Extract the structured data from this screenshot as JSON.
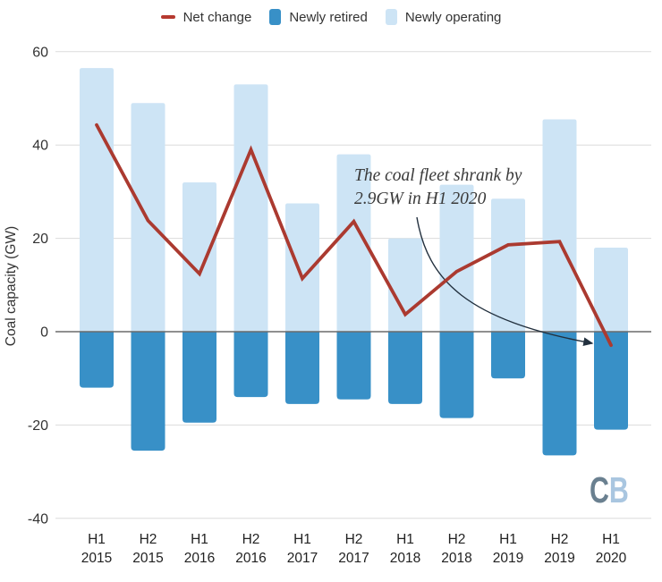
{
  "legend": {
    "items": [
      {
        "label": "Net change",
        "marker": "line-dash-icon",
        "color": "#b6392f"
      },
      {
        "label": "Newly retired",
        "marker": "square-icon",
        "color": "#3890c7"
      },
      {
        "label": "Newly operating",
        "marker": "square-icon",
        "color": "#cde4f5"
      }
    ]
  },
  "chart_data": {
    "type": "bar",
    "title": "",
    "xlabel": "",
    "ylabel": "Coal capacity (GW)",
    "ylim": [
      -40,
      60
    ],
    "y_ticks": [
      60,
      40,
      20,
      0,
      -20,
      -40
    ],
    "grid": "horizontal",
    "legend_position": "top",
    "categories": [
      "H1 2015",
      "H2 2015",
      "H1 2016",
      "H2 2016",
      "H1 2017",
      "H2 2017",
      "H1 2018",
      "H2 2018",
      "H1 2019",
      "H2 2019",
      "H1 2020"
    ],
    "series": [
      {
        "name": "Newly operating",
        "type": "bar",
        "color": "#cde4f5",
        "values": [
          56.5,
          49,
          32,
          53,
          27.5,
          38,
          20,
          31.5,
          28.5,
          45.5,
          18
        ]
      },
      {
        "name": "Newly retired",
        "type": "bar",
        "color": "#3890c7",
        "values": [
          -12,
          -25.5,
          -19.5,
          -14,
          -15.5,
          -14.5,
          -15.5,
          -18.5,
          -10,
          -26.5,
          -21
        ]
      },
      {
        "name": "Net change",
        "type": "line",
        "color": "#ab3a30",
        "values": [
          44.3,
          23.8,
          12.4,
          39,
          11.4,
          23.6,
          3.7,
          12.9,
          18.6,
          19.3,
          -2.9
        ]
      }
    ],
    "annotation": {
      "line1": "The coal fleet shrank by",
      "line2": "2.9GW in H1 2020"
    },
    "colors": {
      "grid_line": "#dcdcdc",
      "zero_line": "#6b6b6b",
      "axis_text": "#333333",
      "category_text": "#222222",
      "arrow": "#22303e"
    }
  },
  "logo": {
    "letter_c": "C",
    "letter_b": "B",
    "c_color": "#6a8090",
    "b_color": "#a9c6e0"
  }
}
